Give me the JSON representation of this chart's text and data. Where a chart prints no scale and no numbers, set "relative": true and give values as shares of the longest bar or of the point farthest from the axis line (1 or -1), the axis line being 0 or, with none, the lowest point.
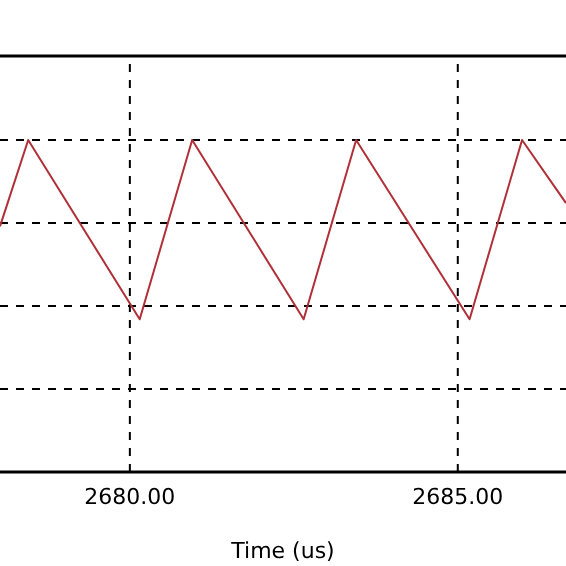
{
  "chart_data": {
    "type": "line",
    "xlabel": "Time (us)",
    "relative": true,
    "x": [
      2678.02,
      2678.45,
      2680.15,
      2680.95,
      2682.65,
      2683.45,
      2685.18,
      2685.98,
      2686.65
    ],
    "series": [
      {
        "color": "#b03038",
        "values": [
          0.74,
          1,
          0.46,
          1,
          0.46,
          1,
          0.46,
          1,
          0.81
        ]
      }
    ],
    "xlim": [
      2678.02,
      2686.65
    ],
    "xticks": [
      {
        "value": 2680,
        "label": "2680.00"
      },
      {
        "value": 2685,
        "label": "2685.00"
      }
    ],
    "grid": true,
    "marker": "none",
    "line_style": "solid",
    "tick_labels": "x"
  }
}
